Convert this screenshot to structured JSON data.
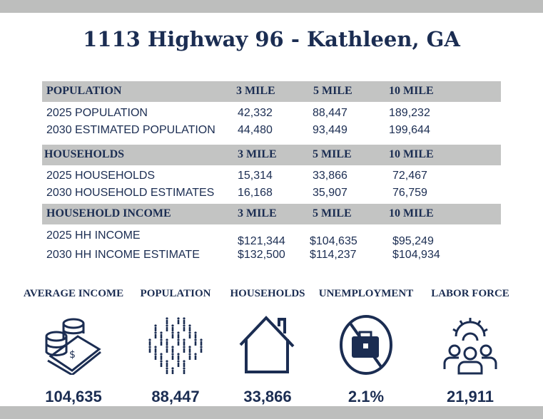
{
  "title": "1113 Highway 96 - Kathleen, GA",
  "columns": [
    "3 MILE",
    "5 MILE",
    "10 MILE"
  ],
  "sections": [
    {
      "heading": "POPULATION",
      "rows": [
        {
          "label": "2025 POPULATION",
          "values": [
            "42,332",
            "88,447",
            "189,232"
          ]
        },
        {
          "label": "2030 ESTIMATED POPULATION",
          "values": [
            "44,480",
            "93,449",
            "199,644"
          ]
        }
      ]
    },
    {
      "heading": "HOUSEHOLDS",
      "rows": [
        {
          "label": "2025 HOUSEHOLDS",
          "values": [
            "15,314",
            "33,866",
            "72,467"
          ]
        },
        {
          "label": "2030 HOUSEHOLD ESTIMATES",
          "values": [
            "16,168",
            "35,907",
            "76,759"
          ]
        }
      ]
    },
    {
      "heading": "HOUSEHOLD INCOME",
      "rows": [
        {
          "label": "2025 HH INCOME",
          "values": [
            "$121,344",
            "$104,635",
            "$95,249"
          ]
        },
        {
          "label": "2030 HH INCOME ESTIMATE",
          "values": [
            "$132,500",
            "$114,237",
            "$104,934"
          ]
        }
      ]
    }
  ],
  "stats": [
    {
      "label": "AVERAGE INCOME",
      "value": "104,635",
      "icon": "money-coins-icon"
    },
    {
      "label": "POPULATION",
      "value": "88,447",
      "icon": "people-crowd-icon"
    },
    {
      "label": "HOUSEHOLDS",
      "value": "33,866",
      "icon": "house-icon"
    },
    {
      "label": "UNEMPLOYMENT",
      "value": "2.1%",
      "icon": "no-briefcase-icon"
    },
    {
      "label": "LABOR FORCE",
      "value": "21,911",
      "icon": "team-gear-icon"
    }
  ],
  "colors": {
    "navy": "#1b2d52",
    "header_gray": "#c3c4c3",
    "bar_gray": "#bdbebd"
  }
}
